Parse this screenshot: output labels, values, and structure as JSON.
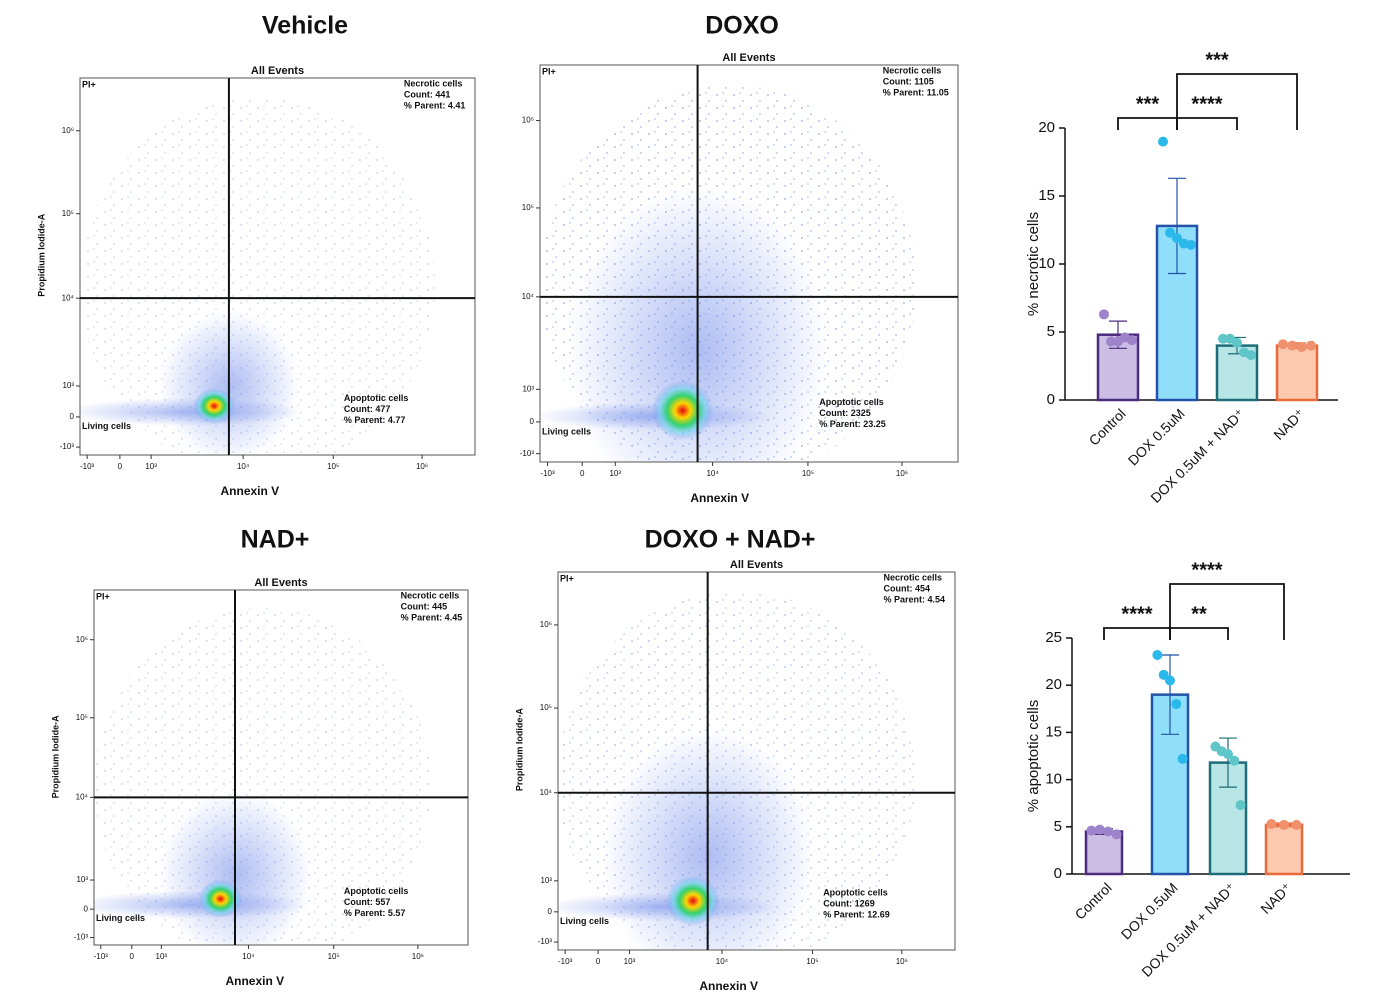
{
  "flow_panels": [
    {
      "title": "Vehicle",
      "plot_title": "All Events",
      "gate": "PI+",
      "y_label": "Propidium Iodide-A",
      "x_label": "Annexin V",
      "necrotic": [
        "Necrotic cells",
        "Count: 441",
        "% Parent: 4.41"
      ],
      "apoptotic": [
        "Apoptotic cells",
        "Count: 477",
        "% Parent: 4.77"
      ],
      "living": "Living cells"
    },
    {
      "title": "DOXO",
      "plot_title": "All Events",
      "gate": "PI+",
      "x_label": "Annexin V",
      "necrotic": [
        "Necrotic cells",
        "Count: 1105",
        "% Parent: 11.05"
      ],
      "apoptotic": [
        "Apoptotic cells",
        "Count: 2325",
        "% Parent: 23.25"
      ],
      "living": "Living cells"
    },
    {
      "title": "NAD+",
      "plot_title": "All Events",
      "gate": "PI+",
      "y_label": "Propidium Iodide-A",
      "x_label": "Annexin V",
      "necrotic": [
        "Necrotic cells",
        "Count: 445",
        "% Parent: 4.45"
      ],
      "apoptotic": [
        "Apoptotic cells",
        "Count: 557",
        "% Parent: 5.57"
      ],
      "living": "Living cells"
    },
    {
      "title": "DOXO   +  NAD+",
      "plot_title": "All Events",
      "gate": "PI+",
      "y_label": "Propidium Iodide-A",
      "x_label": "Annexin V",
      "necrotic": [
        "Necrotic cells",
        "Count: 454",
        "% Parent: 4.54"
      ],
      "apoptotic": [
        "Apoptotic cells",
        "Count: 1269",
        "% Parent: 12.69"
      ],
      "living": "Living cells"
    }
  ],
  "flow_axis": {
    "x_ticks": [
      "-10³",
      "0",
      "10³",
      "10⁴",
      "10⁵",
      "10⁶"
    ],
    "y_ticks": [
      "10⁶",
      "10⁵",
      "10⁴",
      "10³",
      "0",
      "-10³"
    ]
  },
  "chart_data": [
    {
      "type": "bar",
      "y_label": "% necrotic cells",
      "categories": [
        "Control",
        "DOX 0.5uM",
        "DOX 0.5uM + NAD⁺",
        "NAD⁺"
      ],
      "values": [
        4.8,
        12.8,
        4.0,
        4.0
      ],
      "errors": [
        1.0,
        3.5,
        0.6,
        0.2
      ],
      "points": [
        [
          6.3,
          4.3,
          4.3,
          4.6,
          4.4
        ],
        [
          19,
          12.3,
          11.9,
          11.5,
          11.4
        ],
        [
          4.5,
          4.5,
          4.2,
          3.5,
          3.3
        ],
        [
          4.1,
          4.0,
          3.9,
          4.0
        ]
      ],
      "colors": [
        "#cbbde3",
        "#8fdffa",
        "#b8e5e6",
        "#fcc8ae"
      ],
      "edge_colors": [
        "#4a2c7c",
        "#2352a8",
        "#1d6d78",
        "#e86a3a"
      ],
      "point_colors": [
        "#9d83c9",
        "#2bb8ea",
        "#5ec6c8",
        "#f0916e"
      ],
      "ylim": [
        0,
        20
      ],
      "yticks": [
        0,
        5,
        10,
        15,
        20
      ],
      "annotations": [
        {
          "text": "***",
          "between": [
            "Control",
            "DOX 0.5uM"
          ]
        },
        {
          "text": "****",
          "between": [
            "DOX 0.5uM",
            "DOX 0.5uM + NAD⁺"
          ]
        },
        {
          "text": "***",
          "between": [
            "DOX 0.5uM",
            "NAD⁺"
          ]
        }
      ]
    },
    {
      "type": "bar",
      "y_label": "% apoptotic cells",
      "categories": [
        "Control",
        "DOX 0.5uM",
        "DOX 0.5uM + NAD⁺",
        "NAD⁺"
      ],
      "values": [
        4.5,
        19.0,
        11.8,
        5.2
      ],
      "errors": [
        0.3,
        4.2,
        2.6,
        0.2
      ],
      "points": [
        [
          4.6,
          4.7,
          4.5,
          4.2
        ],
        [
          23.2,
          21.1,
          20.5,
          18.0,
          12.2
        ],
        [
          13.5,
          13.0,
          12.7,
          12.0,
          7.3
        ],
        [
          5.3,
          5.2,
          5.2
        ]
      ],
      "colors": [
        "#cbbde3",
        "#8fdffa",
        "#b8e5e6",
        "#fcc8ae"
      ],
      "edge_colors": [
        "#4a2c7c",
        "#2352a8",
        "#1d6d78",
        "#e86a3a"
      ],
      "point_colors": [
        "#9d83c9",
        "#2bb8ea",
        "#5ec6c8",
        "#f0916e"
      ],
      "ylim": [
        0,
        25
      ],
      "yticks": [
        0,
        5,
        10,
        15,
        20,
        25
      ],
      "annotations": [
        {
          "text": "****",
          "between": [
            "Control",
            "DOX 0.5uM"
          ]
        },
        {
          "text": "**",
          "between": [
            "DOX 0.5uM",
            "DOX 0.5uM + NAD⁺"
          ]
        },
        {
          "text": "****",
          "between": [
            "DOX 0.5uM",
            "NAD⁺"
          ]
        }
      ]
    }
  ]
}
